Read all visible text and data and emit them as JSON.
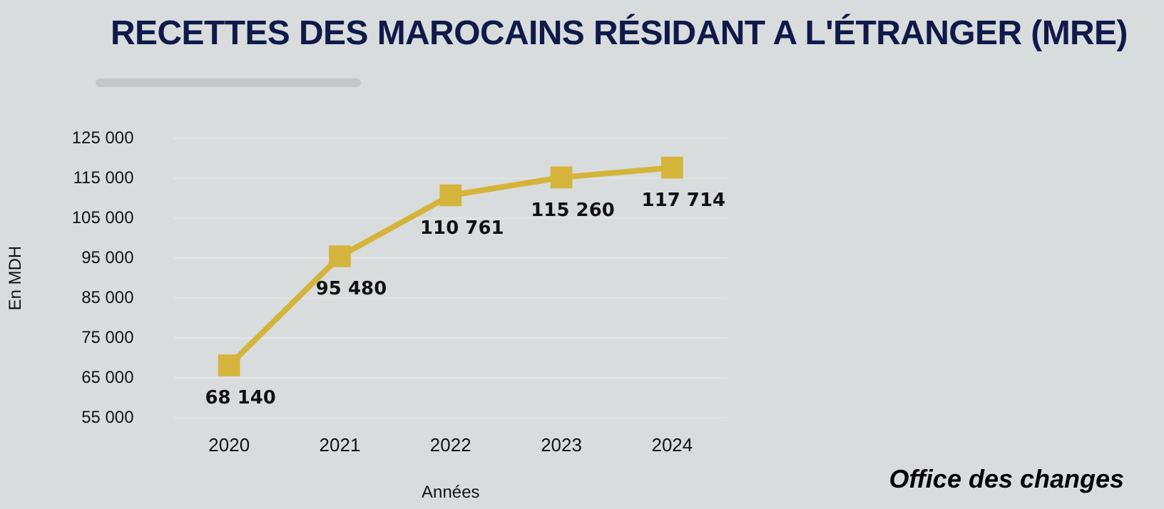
{
  "chart_data": {
    "type": "line",
    "title": "RECETTES DES MAROCAINS RÉSIDANT A L'ÉTRANGER (MRE)",
    "xlabel": "Années",
    "ylabel": "En MDH",
    "categories": [
      "2020",
      "2021",
      "2022",
      "2023",
      "2024"
    ],
    "series": [
      {
        "color": "#d4b43a",
        "values": [
          68140,
          95480,
          110761,
          115260,
          117714
        ]
      }
    ],
    "value_labels": [
      "68 140",
      "95 480",
      "110 761",
      "115 260",
      "117 714"
    ],
    "ylim": [
      55000,
      125000
    ],
    "yticks": [
      {
        "value": 55000,
        "label": "55 000"
      },
      {
        "value": 65000,
        "label": "65 000"
      },
      {
        "value": 75000,
        "label": "75 000"
      },
      {
        "value": 85000,
        "label": "85 000"
      },
      {
        "value": 95000,
        "label": "95 000"
      },
      {
        "value": 105000,
        "label": "105 000"
      },
      {
        "value": 115000,
        "label": "115 000"
      },
      {
        "value": 125000,
        "label": "125 000"
      }
    ],
    "grid": "y",
    "marker": "square",
    "line_style": "solid",
    "legend": false,
    "annotations": [
      "Office des changes"
    ]
  }
}
